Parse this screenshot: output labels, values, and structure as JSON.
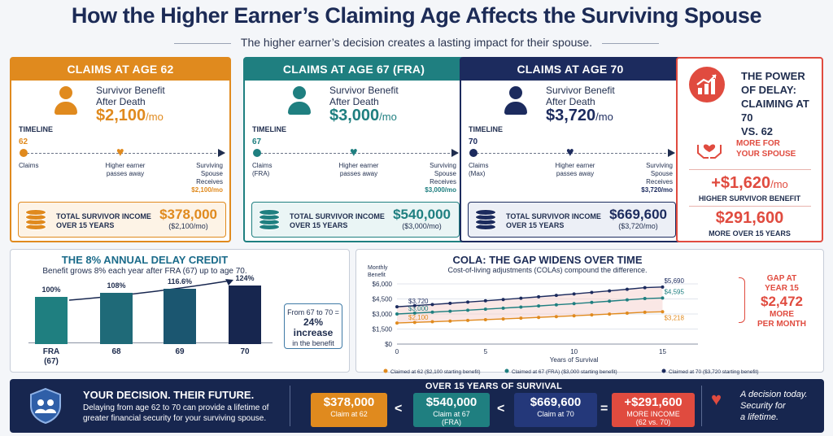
{
  "title": "How the Higher Earner’s Claiming Age Affects the Surviving Spouse",
  "subtitle": "The higher earner’s decision creates a lasting impact for their spouse.",
  "cards": [
    {
      "header": "CLAIMS AT AGE 62",
      "color": "#e08a1e",
      "survivor_label": "Survivor Benefit\nAfter Death",
      "amount": "$2,100",
      "per": "/mo",
      "timeline_label": "TIMELINE",
      "age": "62",
      "claims": "Claims",
      "passes": "Higher earner\npasses away",
      "surviving": "Surviving\nSpouse\nReceives",
      "receives": "$2,100/mo",
      "total_label": "TOTAL SURVIVOR INCOME\nOVER 15 YEARS",
      "total": "$378,000",
      "total_sub": "($2,100/mo)"
    },
    {
      "header": "CLAIMS AT AGE 67 (FRA)",
      "color": "#1f7f80",
      "survivor_label": "Survivor Benefit\nAfter Death",
      "amount": "$3,000",
      "per": "/mo",
      "timeline_label": "TIMELINE",
      "age": "67",
      "claims": "Claims\n(FRA)",
      "passes": "Higher earner\npasses away",
      "surviving": "Surviving\nSpouse\nReceives",
      "receives": "$3,000/mo",
      "total_label": "TOTAL SURVIVOR INCOME\nOVER 15 YEARS",
      "total": "$540,000",
      "total_sub": "($3,000/mo)"
    },
    {
      "header": "CLAIMS AT AGE 70",
      "color": "#1c2b5e",
      "survivor_label": "Survivor Benefit\nAfter Death",
      "amount": "$3,720",
      "per": "/mo",
      "timeline_label": "TIMELINE",
      "age": "70",
      "claims": "Claims\n(Max)",
      "passes": "Higher earner\npasses away",
      "surviving": "Surviving\nSpouse\nReceives",
      "receives": "$3,720/mo",
      "total_label": "TOTAL SURVIVOR INCOME\nOVER 15 YEARS",
      "total": "$669,600",
      "total_sub": "($3,720/mo)"
    }
  ],
  "power": {
    "title": "THE POWER\nOF DELAY:\nCLAIMING AT 70\nVS. 62",
    "more": "MORE FOR\nYOUR SPOUSE",
    "big1": "+$1,620",
    "big1_per": "/mo",
    "sub1": "HIGHER SURVIVOR BENEFIT",
    "big2": "$291,600",
    "sub2": "MORE OVER 15 YEARS"
  },
  "delay": {
    "title": "THE 8% ANNUAL DELAY CREDIT",
    "subtitle": "Benefit grows 8% each year after FRA (67) up to age 70.",
    "note_pre": "From 67 to 70 =",
    "note_big": "24% increase",
    "note_post": "in the benefit"
  },
  "cola": {
    "title": "COLA: THE GAP WIDENS OVER TIME",
    "subtitle": "Cost-of-living adjustments (COLAs) compound the difference.",
    "gap_pre": "GAP AT\nYEAR 15",
    "gap_amt": "$2,472",
    "gap_post": "MORE\nPER MONTH"
  },
  "banner": {
    "title": "YOUR DECISION. THEIR FUTURE.",
    "text": "Delaying from age 62 to 70 can provide a lifetime of greater financial security for your surviving spouse.",
    "mid_title": "OVER 15 YEARS OF SURVIVAL",
    "boxes": [
      {
        "value": "$378,000",
        "label": "Claim at 62",
        "color": "#e08a1e"
      },
      {
        "value": "$540,000",
        "label": "Claim at 67\n(FRA)",
        "color": "#1f7f80"
      },
      {
        "value": "$669,600",
        "label": "Claim at 70",
        "color": "#24387a"
      },
      {
        "value": "+$291,600",
        "label": "MORE INCOME\n(62 vs. 70)",
        "color": "#e04b3f"
      }
    ],
    "ops": [
      "<",
      "<",
      "="
    ],
    "right": "A decision today.\nSecurity for\na lifetime."
  },
  "chart_data": [
    {
      "type": "bar",
      "title": "THE 8% ANNUAL DELAY CREDIT",
      "categories": [
        "FRA\n(67)",
        "68",
        "69",
        "70"
      ],
      "values": [
        100,
        108,
        116.6,
        124
      ],
      "value_labels": [
        "100%",
        "108%",
        "116.6%",
        "124%"
      ],
      "colors": [
        "#1f7f80",
        "#1f6a78",
        "#1b5670",
        "#17264f"
      ],
      "ylim": [
        0,
        130
      ]
    },
    {
      "type": "line",
      "title": "COLA: THE GAP WIDENS OVER TIME",
      "xlabel": "Years of Survival",
      "ylabel": "Monthly\nBenefit",
      "x": [
        0,
        1,
        2,
        3,
        4,
        5,
        6,
        7,
        8,
        9,
        10,
        11,
        12,
        13,
        14,
        15
      ],
      "xlim": [
        0,
        17
      ],
      "ylim": [
        0,
        6000
      ],
      "xticks": [
        0,
        5,
        10,
        15
      ],
      "yticks": [
        0,
        1500,
        3000,
        4500,
        6000
      ],
      "ytick_labels": [
        "$0",
        "$1,500",
        "$3,000",
        "$4,500",
        "$6,000"
      ],
      "series": [
        {
          "name": "Claimed at 62 ($2,100 starting benefit)",
          "color": "#e08a1e",
          "start_label": "$2,100",
          "end_label": "$3,218",
          "values": [
            2100,
            2163,
            2228,
            2295,
            2364,
            2435,
            2508,
            2583,
            2660,
            2740,
            2822,
            2907,
            2994,
            3084,
            3176,
            3218
          ]
        },
        {
          "name": "Claimed at 67 (FRA) ($3,000 starting benefit)",
          "color": "#1f7f80",
          "start_label": "$3,000",
          "end_label": "$4,595",
          "values": [
            3000,
            3090,
            3183,
            3278,
            3377,
            3478,
            3582,
            3690,
            3800,
            3914,
            4032,
            4153,
            4277,
            4406,
            4538,
            4595
          ]
        },
        {
          "name": "Claimed at 70 ($3,720 starting benefit)",
          "color": "#1c2b5e",
          "start_label": "$3,720",
          "end_label": "$5,690",
          "values": [
            3720,
            3832,
            3947,
            4065,
            4187,
            4313,
            4442,
            4575,
            4713,
            4854,
            5000,
            5150,
            5304,
            5463,
            5627,
            5690
          ]
        }
      ]
    }
  ]
}
